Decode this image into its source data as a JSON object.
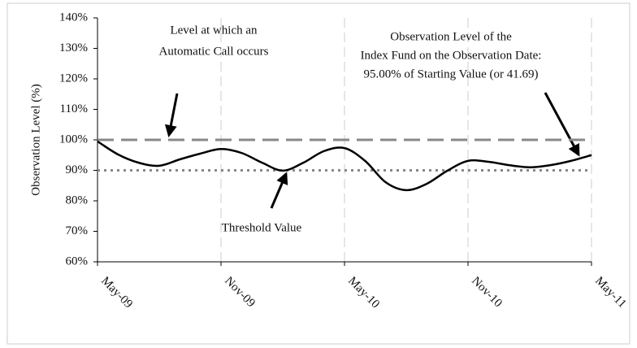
{
  "chart_data": {
    "type": "line",
    "y_label": "Observation Level (%)",
    "xlim": [
      0,
      24
    ],
    "xticks": [
      {
        "value": 0,
        "label": "May-09"
      },
      {
        "value": 6,
        "label": "Nov-09"
      },
      {
        "value": 12,
        "label": "May-10"
      },
      {
        "value": 18,
        "label": "Nov-10"
      },
      {
        "value": 24,
        "label": "May-11"
      }
    ],
    "ylim": [
      60,
      140
    ],
    "yticks": [
      {
        "value": 60,
        "label": "60%"
      },
      {
        "value": 70,
        "label": "70%"
      },
      {
        "value": 80,
        "label": "80%"
      },
      {
        "value": 90,
        "label": "90%"
      },
      {
        "value": 100,
        "label": "100%"
      },
      {
        "value": 110,
        "label": "110%"
      },
      {
        "value": 120,
        "label": "120%"
      },
      {
        "value": 130,
        "label": "130%"
      },
      {
        "value": 140,
        "label": "140%"
      }
    ],
    "x_grid": true,
    "series": [
      {
        "color": "#000000",
        "x": [
          0,
          1,
          2,
          3,
          4,
          5,
          6,
          7,
          8,
          9,
          10,
          11,
          12,
          13,
          14,
          15,
          16,
          17,
          18,
          19,
          20,
          21,
          22,
          23,
          24
        ],
        "values": [
          99.5,
          95.2,
          92.5,
          91.5,
          93.6,
          95.5,
          97,
          95.7,
          92.5,
          89.9,
          92.5,
          96.3,
          97.3,
          93.1,
          86.1,
          83.5,
          85.6,
          89.9,
          93.1,
          92.8,
          91.7,
          91,
          91.7,
          93.1,
          95
        ]
      }
    ],
    "reference_lines": [
      {
        "value": 100,
        "style": "dashed",
        "color": "#888888"
      },
      {
        "value": 90,
        "style": "dotted",
        "color": "#888888"
      }
    ],
    "annotations": [
      {
        "lines": [
          "Level at which an",
          "Automatic Call occurs"
        ]
      },
      {
        "lines": [
          "Observation Level of the",
          "Index Fund on the Observation Date:",
          "95.00% of Starting Value (or 41.69)"
        ]
      },
      {
        "lines": [
          "Threshold Value"
        ]
      }
    ]
  }
}
